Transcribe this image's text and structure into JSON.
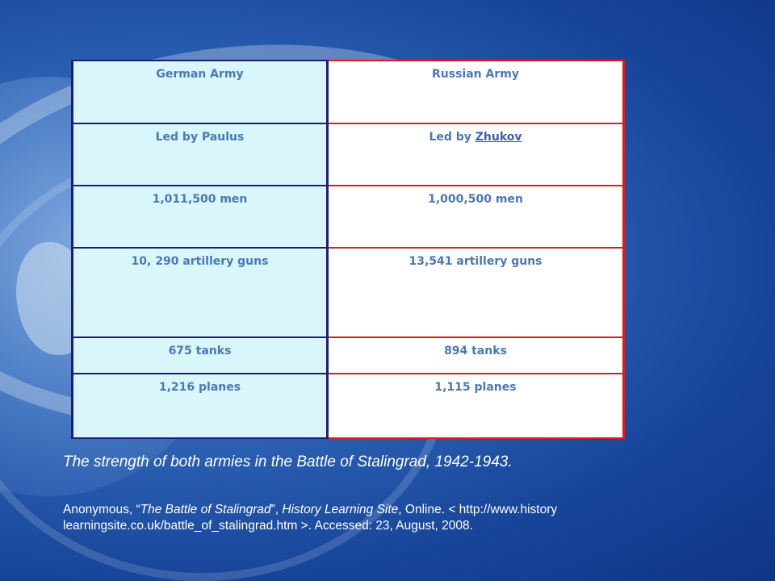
{
  "table": {
    "headers": [
      "German Army",
      "Russian Army"
    ],
    "rows": [
      {
        "german": "Led by Paulus",
        "russian_prefix": "Led by ",
        "russian_link": "Zhukov"
      },
      {
        "german": "1,011,500  men",
        "russian": "1,000,500  men"
      },
      {
        "german": "10, 290 artillery guns",
        "russian": "13,541 artillery guns"
      },
      {
        "german": "675 tanks",
        "russian": "894 tanks"
      },
      {
        "german": "1,216 planes",
        "russian": "1,115 planes"
      }
    ]
  },
  "caption": "The strength of both armies in the Battle of Stalingrad, 1942-1943.",
  "citation": {
    "author": "Anonymous, “",
    "article": "The Battle of Stalingrad",
    "mid": "”, ",
    "site": "History Learning Site",
    "rest": ", Online. < http://www.history learningsite.co.uk/battle_of_stalingrad.htm >. Accessed: 23, August, 2008."
  },
  "colors": {
    "german_bg": "#d9f6fb",
    "russian_border": "#e11b1b",
    "german_border": "#1c1c7a",
    "text_blue": "#4a78b8"
  }
}
